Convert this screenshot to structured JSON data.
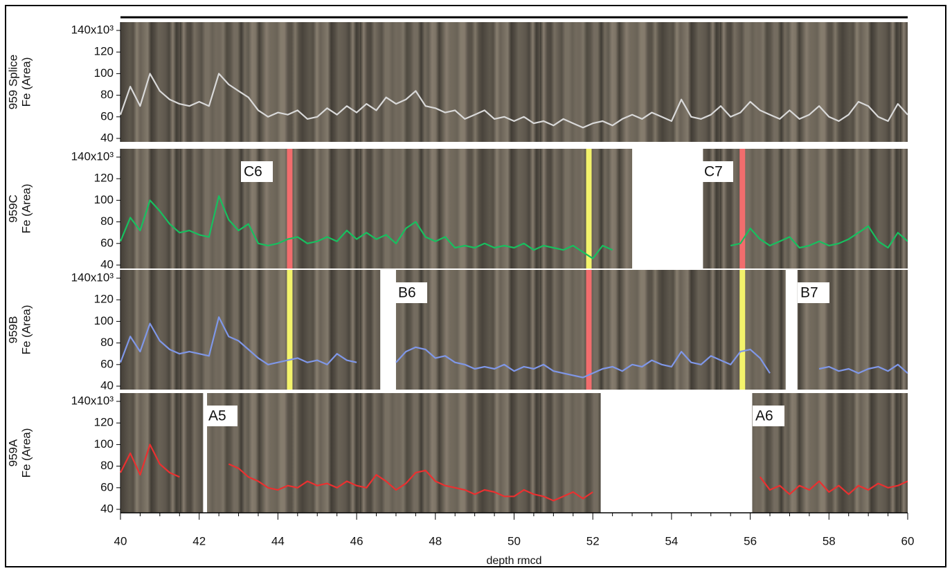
{
  "chart_data": [
    {
      "type": "line",
      "ylabel": [
        "959 Splice",
        "Fe (Area)"
      ],
      "color": "#d9d9d9",
      "xlim": [
        40,
        60
      ],
      "ylim": [
        40,
        140
      ],
      "yticks": [
        40,
        60,
        80,
        100,
        120,
        {
          "value": 140,
          "label": "140x10³"
        }
      ],
      "x": [
        40,
        40.25,
        40.5,
        40.75,
        41,
        41.25,
        41.5,
        41.75,
        42,
        42.25,
        42.5,
        42.75,
        43,
        43.25,
        43.5,
        43.75,
        44,
        44.25,
        44.5,
        44.75,
        45,
        45.25,
        45.5,
        45.75,
        46,
        46.25,
        46.5,
        46.75,
        47,
        47.25,
        47.5,
        47.75,
        48,
        48.25,
        48.5,
        48.75,
        49,
        49.25,
        49.5,
        49.75,
        50,
        50.25,
        50.5,
        50.75,
        51,
        51.25,
        51.5,
        51.75,
        52,
        52.25,
        52.5,
        52.75,
        53,
        53.25,
        53.5,
        53.75,
        54,
        54.25,
        54.5,
        54.75,
        55,
        55.25,
        55.5,
        55.75,
        56,
        56.25,
        56.5,
        56.75,
        57,
        57.25,
        57.5,
        57.75,
        58,
        58.25,
        58.5,
        58.75,
        59,
        59.25,
        59.5,
        59.75,
        60
      ],
      "values": [
        62,
        88,
        70,
        100,
        84,
        76,
        72,
        70,
        74,
        70,
        100,
        90,
        84,
        78,
        66,
        60,
        64,
        62,
        66,
        58,
        60,
        68,
        62,
        70,
        64,
        72,
        66,
        78,
        72,
        76,
        84,
        70,
        68,
        64,
        66,
        58,
        62,
        66,
        58,
        60,
        56,
        60,
        54,
        56,
        52,
        58,
        54,
        50,
        54,
        56,
        52,
        58,
        62,
        58,
        64,
        60,
        56,
        76,
        60,
        58,
        62,
        70,
        60,
        64,
        74,
        66,
        62,
        58,
        66,
        58,
        62,
        70,
        60,
        56,
        62,
        74,
        70,
        60,
        56,
        72,
        62
      ],
      "core_images": [
        {
          "range": [
            40,
            60
          ]
        }
      ]
    },
    {
      "type": "line",
      "ylabel": [
        "959C",
        "Fe (Area)"
      ],
      "color": "#17c05f",
      "xlim": [
        40,
        60
      ],
      "ylim": [
        40,
        140
      ],
      "yticks": [
        40,
        60,
        80,
        100,
        120,
        {
          "value": 140,
          "label": "140x10³"
        }
      ],
      "x": [
        40,
        40.25,
        40.5,
        40.75,
        41,
        41.25,
        41.5,
        41.75,
        42,
        42.25,
        42.5,
        42.75,
        43,
        43.25,
        43.5,
        43.75,
        44,
        44.25,
        44.5,
        44.75,
        45,
        45.25,
        45.5,
        45.75,
        46,
        46.25,
        46.5,
        46.75,
        47,
        47.25,
        47.5,
        47.75,
        48,
        48.25,
        48.5,
        48.75,
        49,
        49.25,
        49.5,
        49.75,
        50,
        50.25,
        50.5,
        50.75,
        51,
        51.25,
        51.5,
        51.75,
        52,
        52.25,
        52.5,
        52.75,
        53,
        53.25,
        53.5,
        53.75,
        54,
        54.25,
        54.5,
        54.75,
        55,
        55.25,
        55.5,
        55.75,
        56,
        56.25,
        56.5,
        56.75,
        57,
        57.25,
        57.5,
        57.75,
        58,
        58.25,
        58.5,
        58.75,
        59,
        59.25,
        59.5,
        59.75,
        60
      ],
      "values": [
        62,
        84,
        72,
        100,
        90,
        78,
        70,
        72,
        68,
        66,
        104,
        82,
        72,
        78,
        60,
        58,
        60,
        64,
        66,
        60,
        62,
        66,
        62,
        72,
        64,
        70,
        64,
        68,
        60,
        74,
        80,
        66,
        62,
        66,
        56,
        58,
        56,
        60,
        56,
        58,
        56,
        60,
        54,
        58,
        56,
        54,
        58,
        52,
        46,
        58,
        54,
        null,
        null,
        null,
        null,
        null,
        null,
        null,
        null,
        null,
        null,
        null,
        58,
        60,
        74,
        64,
        58,
        62,
        66,
        56,
        58,
        62,
        58,
        60,
        64,
        70,
        76,
        62,
        56,
        70,
        62
      ],
      "core_images": [
        {
          "range": [
            40,
            53
          ],
          "label": "C6"
        },
        {
          "range": [
            54.8,
            60
          ],
          "label": "C7"
        }
      ],
      "tie_points": [
        {
          "x": 44.3,
          "color": "#f26d6d"
        },
        {
          "x": 51.9,
          "color": "#f4f36b"
        },
        {
          "x": 55.8,
          "color": "#f26d6d"
        }
      ]
    },
    {
      "type": "line",
      "ylabel": [
        "959B",
        "Fe (Area)"
      ],
      "color": "#7f97e8",
      "xlim": [
        40,
        60
      ],
      "ylim": [
        40,
        140
      ],
      "yticks": [
        40,
        60,
        80,
        100,
        120,
        {
          "value": 140,
          "label": "140x10³"
        }
      ],
      "x": [
        40,
        40.25,
        40.5,
        40.75,
        41,
        41.25,
        41.5,
        41.75,
        42,
        42.25,
        42.5,
        42.75,
        43,
        43.25,
        43.5,
        43.75,
        44,
        44.25,
        44.5,
        44.75,
        45,
        45.25,
        45.5,
        45.75,
        46,
        46.25,
        46.5,
        46.75,
        47,
        47.25,
        47.5,
        47.75,
        48,
        48.25,
        48.5,
        48.75,
        49,
        49.25,
        49.5,
        49.75,
        50,
        50.25,
        50.5,
        50.75,
        51,
        51.25,
        51.5,
        51.75,
        52,
        52.25,
        52.5,
        52.75,
        53,
        53.25,
        53.5,
        53.75,
        54,
        54.25,
        54.5,
        54.75,
        55,
        55.25,
        55.5,
        55.75,
        56,
        56.25,
        56.5,
        56.75,
        57,
        57.25,
        57.5,
        57.75,
        58,
        58.25,
        58.5,
        58.75,
        59,
        59.25,
        59.5,
        59.75,
        60
      ],
      "values": [
        62,
        86,
        72,
        98,
        82,
        74,
        70,
        72,
        70,
        68,
        104,
        86,
        82,
        74,
        66,
        60,
        62,
        64,
        66,
        62,
        64,
        60,
        70,
        64,
        62,
        null,
        null,
        null,
        62,
        72,
        76,
        74,
        66,
        68,
        62,
        60,
        56,
        58,
        56,
        60,
        54,
        58,
        56,
        60,
        54,
        52,
        50,
        48,
        52,
        56,
        58,
        54,
        60,
        58,
        64,
        60,
        58,
        72,
        62,
        60,
        68,
        64,
        60,
        72,
        74,
        66,
        52,
        null,
        null,
        null,
        null,
        56,
        58,
        54,
        56,
        52,
        56,
        58,
        54,
        60,
        52
      ],
      "core_images": [
        {
          "range": [
            40,
            46.6
          ]
        },
        {
          "range": [
            47,
            56.9
          ],
          "label": "B6"
        },
        {
          "range": [
            57.2,
            60
          ],
          "label": "B7"
        }
      ],
      "tie_points": [
        {
          "x": 44.3,
          "color": "#f4f36b"
        },
        {
          "x": 51.9,
          "color": "#f26d6d"
        },
        {
          "x": 55.8,
          "color": "#f4f36b"
        }
      ]
    },
    {
      "type": "line",
      "ylabel": [
        "959A",
        "Fe (Area)"
      ],
      "color": "#ea3030",
      "xlim": [
        40,
        60
      ],
      "ylim": [
        40,
        140
      ],
      "yticks": [
        40,
        60,
        80,
        100,
        120,
        {
          "value": 140,
          "label": "140x10³"
        }
      ],
      "xticks": [
        40,
        42,
        44,
        46,
        48,
        50,
        52,
        54,
        56,
        58,
        60
      ],
      "xlabel": "depth rmcd",
      "x": [
        40,
        40.25,
        40.5,
        40.75,
        41,
        41.25,
        41.5,
        41.75,
        42,
        42.25,
        42.5,
        42.75,
        43,
        43.25,
        43.5,
        43.75,
        44,
        44.25,
        44.5,
        44.75,
        45,
        45.25,
        45.5,
        45.75,
        46,
        46.25,
        46.5,
        46.75,
        47,
        47.25,
        47.5,
        47.75,
        48,
        48.25,
        48.5,
        48.75,
        49,
        49.25,
        49.5,
        49.75,
        50,
        50.25,
        50.5,
        50.75,
        51,
        51.25,
        51.5,
        51.75,
        52,
        52.25,
        52.5,
        52.75,
        53,
        53.25,
        53.5,
        53.75,
        54,
        54.25,
        54.5,
        54.75,
        55,
        55.25,
        55.5,
        55.75,
        56,
        56.25,
        56.5,
        56.75,
        57,
        57.25,
        57.5,
        57.75,
        58,
        58.25,
        58.5,
        58.75,
        59,
        59.25,
        59.5,
        59.75,
        60
      ],
      "values": [
        74,
        92,
        72,
        100,
        82,
        74,
        70,
        null,
        null,
        null,
        null,
        82,
        78,
        70,
        66,
        60,
        58,
        62,
        60,
        66,
        62,
        64,
        60,
        66,
        62,
        60,
        72,
        66,
        58,
        64,
        74,
        76,
        66,
        62,
        60,
        58,
        54,
        58,
        56,
        52,
        52,
        58,
        54,
        52,
        48,
        52,
        56,
        50,
        56,
        null,
        null,
        null,
        null,
        null,
        null,
        null,
        null,
        null,
        null,
        null,
        null,
        null,
        null,
        null,
        null,
        70,
        58,
        62,
        54,
        62,
        58,
        66,
        56,
        62,
        54,
        62,
        58,
        64,
        60,
        62,
        66
      ],
      "core_images": [
        {
          "range": [
            40,
            42.1
          ]
        },
        {
          "range": [
            42.2,
            52.2
          ],
          "label": "A5"
        },
        {
          "range": [
            56.05,
            60
          ],
          "label": "A6"
        }
      ]
    }
  ]
}
